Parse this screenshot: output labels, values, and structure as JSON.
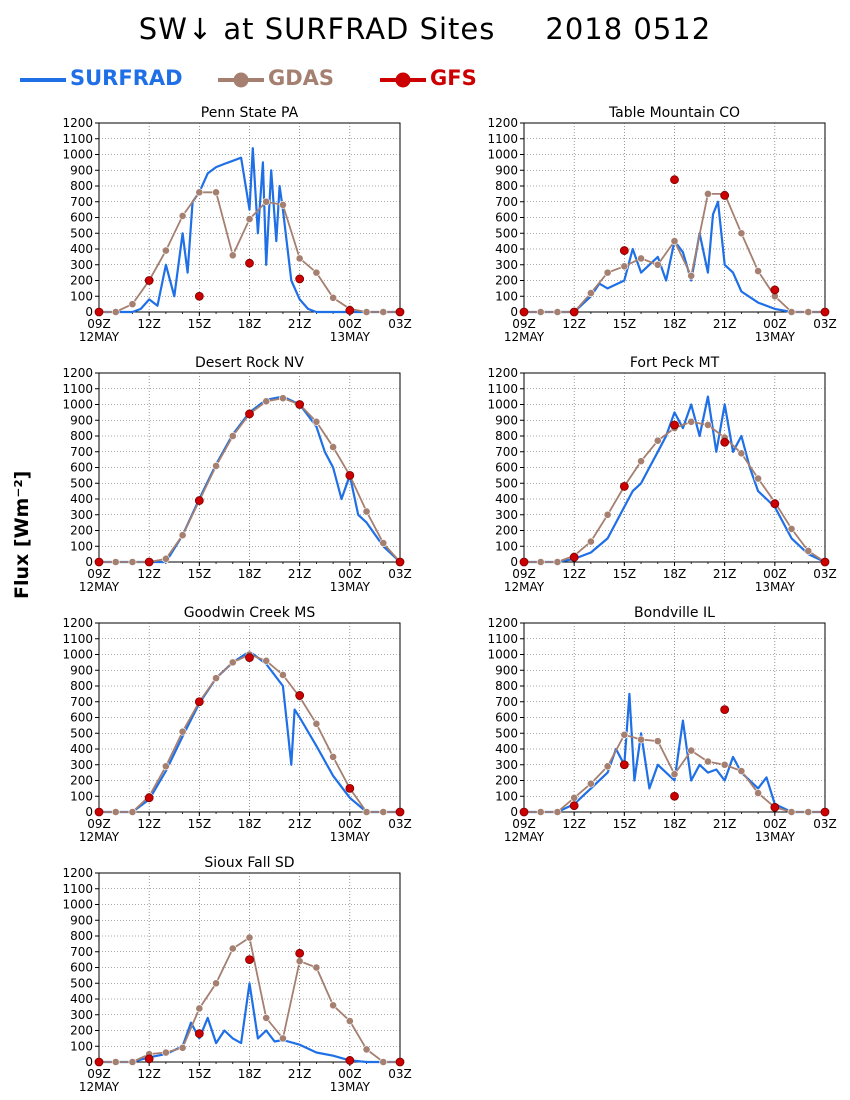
{
  "title": {
    "text": "SW↓ at SURFRAD Sites",
    "date": "2018 0512"
  },
  "legend": [
    {
      "label": "SURFRAD",
      "color": "#1f6fe6",
      "marker": "none"
    },
    {
      "label": "GDAS",
      "color": "#a57f70",
      "marker": "circle"
    },
    {
      "label": "GFS",
      "color": "#cc0000",
      "marker": "circle"
    }
  ],
  "ylabel_text": "Flux [Wm⁻²]",
  "axis": {
    "ylim": [
      0,
      1200
    ],
    "yticks": [
      0,
      100,
      200,
      300,
      400,
      500,
      600,
      700,
      800,
      900,
      1000,
      1100,
      1200
    ],
    "xlim_hours": [
      9,
      27
    ],
    "xticks": [
      {
        "hour": 9,
        "label": "09Z",
        "date": "12MAY"
      },
      {
        "hour": 12,
        "label": "12Z",
        "date": ""
      },
      {
        "hour": 15,
        "label": "15Z",
        "date": ""
      },
      {
        "hour": 18,
        "label": "18Z",
        "date": ""
      },
      {
        "hour": 21,
        "label": "21Z",
        "date": ""
      },
      {
        "hour": 24,
        "label": "00Z",
        "date": "13MAY"
      },
      {
        "hour": 27,
        "label": "03Z",
        "date": ""
      }
    ],
    "grid": true
  },
  "chart_data": [
    {
      "type": "line",
      "title": "Penn State PA",
      "xlabel": "",
      "ylabel": "Flux [Wm⁻²]",
      "ylim": [
        0,
        1200
      ],
      "series": [
        {
          "name": "SURFRAD",
          "x": [
            9,
            11,
            11.5,
            12,
            12.5,
            13,
            13.5,
            14,
            14.3,
            14.6,
            15,
            15.5,
            16,
            16.5,
            17,
            17.5,
            18,
            18.2,
            18.5,
            18.8,
            19,
            19.3,
            19.6,
            19.8,
            20,
            20.5,
            21,
            21.5,
            22,
            23,
            24,
            25,
            26,
            27
          ],
          "y": [
            0,
            0,
            20,
            80,
            40,
            300,
            100,
            500,
            250,
            700,
            760,
            880,
            920,
            940,
            960,
            980,
            650,
            1040,
            500,
            950,
            300,
            900,
            450,
            800,
            650,
            200,
            80,
            20,
            0,
            0,
            0,
            0,
            0,
            0
          ]
        },
        {
          "name": "GDAS",
          "x": [
            9,
            10,
            11,
            12,
            13,
            14,
            15,
            16,
            17,
            18,
            19,
            20,
            21,
            22,
            23,
            24,
            25,
            26,
            27
          ],
          "y": [
            0,
            0,
            50,
            200,
            390,
            610,
            760,
            760,
            360,
            590,
            700,
            680,
            340,
            250,
            90,
            20,
            0,
            0,
            0
          ]
        },
        {
          "name": "GFS",
          "x": [
            9,
            12,
            15,
            18,
            21,
            24,
            27
          ],
          "y": [
            0,
            200,
            100,
            310,
            210,
            10,
            0
          ]
        }
      ]
    },
    {
      "type": "line",
      "title": "Table Mountain CO",
      "xlabel": "",
      "ylabel": "Flux [Wm⁻²]",
      "ylim": [
        0,
        1200
      ],
      "series": [
        {
          "name": "SURFRAD",
          "x": [
            9,
            11,
            12,
            13,
            13.5,
            14,
            15,
            15.5,
            16,
            16.5,
            17,
            17.5,
            18,
            18.5,
            19,
            19.5,
            20,
            20.3,
            20.6,
            21,
            21.5,
            22,
            23,
            24,
            25,
            26,
            27
          ],
          "y": [
            0,
            0,
            0,
            100,
            180,
            150,
            200,
            400,
            250,
            300,
            350,
            200,
            450,
            380,
            200,
            500,
            250,
            620,
            700,
            300,
            250,
            130,
            60,
            20,
            0,
            0,
            0
          ]
        },
        {
          "name": "GDAS",
          "x": [
            9,
            10,
            11,
            12,
            13,
            14,
            15,
            16,
            17,
            18,
            19,
            20,
            21,
            22,
            23,
            24,
            25,
            26,
            27
          ],
          "y": [
            0,
            0,
            0,
            0,
            120,
            250,
            290,
            340,
            300,
            450,
            230,
            750,
            750,
            500,
            260,
            100,
            0,
            0,
            0
          ]
        },
        {
          "name": "GFS",
          "x": [
            9,
            12,
            15,
            18,
            21,
            24,
            27
          ],
          "y": [
            0,
            0,
            390,
            840,
            740,
            140,
            0
          ]
        }
      ]
    },
    {
      "type": "line",
      "title": "Desert Rock NV",
      "xlabel": "",
      "ylabel": "Flux [Wm⁻²]",
      "ylim": [
        0,
        1200
      ],
      "series": [
        {
          "name": "SURFRAD",
          "x": [
            9,
            10,
            11,
            12,
            13,
            14,
            15,
            16,
            17,
            18,
            19,
            20,
            21,
            22,
            22.5,
            23,
            23.5,
            24,
            24.5,
            25,
            26,
            27
          ],
          "y": [
            0,
            0,
            0,
            0,
            0,
            170,
            400,
            620,
            810,
            950,
            1030,
            1050,
            1000,
            860,
            700,
            600,
            400,
            550,
            300,
            250,
            100,
            0
          ]
        },
        {
          "name": "GDAS",
          "x": [
            9,
            10,
            11,
            12,
            13,
            14,
            15,
            16,
            17,
            18,
            19,
            20,
            21,
            22,
            23,
            24,
            25,
            26,
            27
          ],
          "y": [
            0,
            0,
            0,
            0,
            20,
            170,
            390,
            610,
            800,
            940,
            1020,
            1040,
            1000,
            890,
            730,
            550,
            320,
            120,
            0
          ]
        },
        {
          "name": "GFS",
          "x": [
            9,
            12,
            15,
            18,
            21,
            24,
            27
          ],
          "y": [
            0,
            0,
            390,
            940,
            1000,
            550,
            0
          ]
        }
      ]
    },
    {
      "type": "line",
      "title": "Fort Peck MT",
      "xlabel": "",
      "ylabel": "Flux [Wm⁻²]",
      "ylim": [
        0,
        1200
      ],
      "series": [
        {
          "name": "SURFRAD",
          "x": [
            9,
            11,
            12,
            13,
            14,
            15,
            15.5,
            16,
            16.5,
            17,
            17.5,
            18,
            18.5,
            19,
            19.5,
            20,
            20.5,
            21,
            21.5,
            22,
            22.5,
            23,
            23.5,
            24,
            25,
            26,
            27
          ],
          "y": [
            0,
            0,
            20,
            60,
            150,
            350,
            450,
            500,
            600,
            700,
            800,
            950,
            850,
            1000,
            800,
            1050,
            700,
            1000,
            700,
            800,
            600,
            450,
            400,
            350,
            150,
            50,
            0
          ]
        },
        {
          "name": "GDAS",
          "x": [
            9,
            10,
            11,
            12,
            13,
            14,
            15,
            16,
            17,
            18,
            19,
            20,
            21,
            22,
            23,
            24,
            25,
            26,
            27
          ],
          "y": [
            0,
            0,
            0,
            40,
            130,
            300,
            480,
            640,
            770,
            850,
            890,
            870,
            790,
            690,
            530,
            380,
            210,
            70,
            0
          ]
        },
        {
          "name": "GFS",
          "x": [
            9,
            12,
            15,
            18,
            21,
            24,
            27
          ],
          "y": [
            0,
            30,
            480,
            870,
            760,
            370,
            0
          ]
        }
      ]
    },
    {
      "type": "line",
      "title": "Goodwin Creek MS",
      "xlabel": "",
      "ylabel": "Flux [Wm⁻²]",
      "ylim": [
        0,
        1200
      ],
      "series": [
        {
          "name": "SURFRAD",
          "x": [
            9,
            10,
            11,
            12,
            13,
            14,
            15,
            16,
            17,
            18,
            19,
            20,
            20.3,
            20.5,
            20.7,
            21,
            22,
            23,
            24,
            25,
            26,
            27
          ],
          "y": [
            0,
            0,
            0,
            80,
            260,
            480,
            690,
            850,
            950,
            1020,
            940,
            800,
            500,
            300,
            650,
            600,
            420,
            230,
            90,
            0,
            0,
            0
          ]
        },
        {
          "name": "GDAS",
          "x": [
            9,
            10,
            11,
            12,
            13,
            14,
            15,
            16,
            17,
            18,
            19,
            20,
            21,
            22,
            23,
            24,
            25,
            26,
            27
          ],
          "y": [
            0,
            0,
            0,
            100,
            290,
            510,
            700,
            850,
            950,
            1000,
            960,
            870,
            730,
            560,
            350,
            150,
            0,
            0,
            0
          ]
        },
        {
          "name": "GFS",
          "x": [
            9,
            12,
            15,
            18,
            21,
            24,
            27
          ],
          "y": [
            0,
            90,
            700,
            980,
            740,
            150,
            0
          ]
        }
      ]
    },
    {
      "type": "line",
      "title": "Bondville IL",
      "xlabel": "",
      "ylabel": "Flux [Wm⁻²]",
      "ylim": [
        0,
        1200
      ],
      "series": [
        {
          "name": "SURFRAD",
          "x": [
            9,
            11,
            12,
            13,
            14,
            14.5,
            15,
            15.3,
            15.6,
            16,
            16.5,
            17,
            17.5,
            18,
            18.5,
            19,
            19.5,
            20,
            20.5,
            21,
            21.5,
            22,
            23,
            23.5,
            24,
            25,
            26,
            27
          ],
          "y": [
            0,
            0,
            50,
            150,
            250,
            400,
            300,
            750,
            200,
            500,
            150,
            300,
            250,
            200,
            580,
            200,
            300,
            250,
            270,
            200,
            350,
            250,
            150,
            220,
            50,
            0,
            0,
            0
          ]
        },
        {
          "name": "GDAS",
          "x": [
            9,
            10,
            11,
            12,
            13,
            14,
            15,
            16,
            17,
            18,
            19,
            20,
            21,
            22,
            23,
            24,
            25,
            26,
            27
          ],
          "y": [
            0,
            0,
            0,
            90,
            180,
            290,
            490,
            460,
            450,
            240,
            390,
            320,
            300,
            260,
            120,
            30,
            0,
            0,
            0
          ]
        },
        {
          "name": "GFS",
          "x": [
            9,
            12,
            15,
            18,
            21,
            24,
            27
          ],
          "y": [
            0,
            40,
            300,
            100,
            650,
            30,
            0
          ]
        }
      ]
    },
    {
      "type": "line",
      "title": "Sioux Fall SD",
      "xlabel": "",
      "ylabel": "Flux [Wm⁻²]",
      "ylim": [
        0,
        1200
      ],
      "series": [
        {
          "name": "SURFRAD",
          "x": [
            9,
            11,
            12,
            13,
            14,
            14.5,
            15,
            15.5,
            16,
            16.5,
            17,
            17.5,
            18,
            18.5,
            19,
            19.5,
            20,
            21,
            22,
            23,
            24,
            25,
            26,
            27
          ],
          "y": [
            0,
            0,
            30,
            50,
            100,
            250,
            150,
            280,
            120,
            200,
            150,
            120,
            500,
            150,
            200,
            130,
            140,
            110,
            60,
            40,
            10,
            0,
            0,
            0
          ]
        },
        {
          "name": "GDAS",
          "x": [
            9,
            10,
            11,
            12,
            13,
            14,
            15,
            16,
            17,
            18,
            19,
            20,
            21,
            22,
            23,
            24,
            25,
            26,
            27
          ],
          "y": [
            0,
            0,
            0,
            50,
            60,
            90,
            340,
            500,
            720,
            790,
            280,
            150,
            640,
            600,
            360,
            260,
            80,
            0,
            0
          ]
        },
        {
          "name": "GFS",
          "x": [
            9,
            12,
            15,
            18,
            21,
            24,
            27
          ],
          "y": [
            0,
            20,
            180,
            650,
            690,
            10,
            0
          ]
        }
      ]
    }
  ]
}
